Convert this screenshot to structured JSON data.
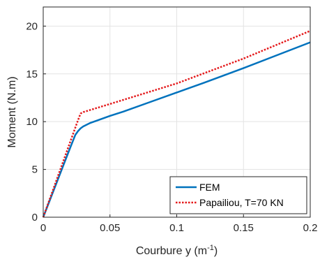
{
  "chart_data": {
    "type": "line",
    "xlabel": "Courbure y (m",
    "xlabel_sup": "-1",
    "xlabel_end": ")",
    "ylabel": "Moment (N.m)",
    "xlim": [
      0,
      0.2
    ],
    "ylim": [
      0,
      22
    ],
    "xticks": [
      0,
      0.05,
      0.1,
      0.15,
      0.2
    ],
    "xtick_labels": [
      "0",
      "0.05",
      "0.1",
      "0.15",
      "0.2"
    ],
    "yticks": [
      0,
      5,
      10,
      15,
      20
    ],
    "ytick_labels": [
      "0",
      "5",
      "10",
      "15",
      "20"
    ],
    "grid": true,
    "legend_position": "bottom-right",
    "series": [
      {
        "name": "FEM",
        "color": "#0072bd",
        "style": "solid",
        "x": [
          0,
          0.005,
          0.01,
          0.015,
          0.02,
          0.024,
          0.026,
          0.028,
          0.03,
          0.035,
          0.04,
          0.05,
          0.06,
          0.08,
          0.1,
          0.12,
          0.15,
          0.2
        ],
        "y": [
          0,
          1.8,
          3.6,
          5.4,
          7.2,
          8.6,
          9.0,
          9.3,
          9.5,
          9.85,
          10.1,
          10.6,
          11.05,
          12.05,
          13.05,
          14.05,
          15.6,
          18.3
        ]
      },
      {
        "name": "Papailiou, T=70 KN",
        "color": "#e41a1c",
        "style": "dotted",
        "x": [
          0,
          0.005,
          0.01,
          0.015,
          0.02,
          0.025,
          0.027,
          0.028,
          0.03,
          0.05,
          0.1,
          0.15,
          0.2
        ],
        "y": [
          0,
          1.95,
          3.9,
          5.85,
          7.8,
          9.75,
          10.5,
          10.85,
          11.0,
          11.85,
          14.0,
          16.6,
          19.5
        ]
      }
    ]
  }
}
